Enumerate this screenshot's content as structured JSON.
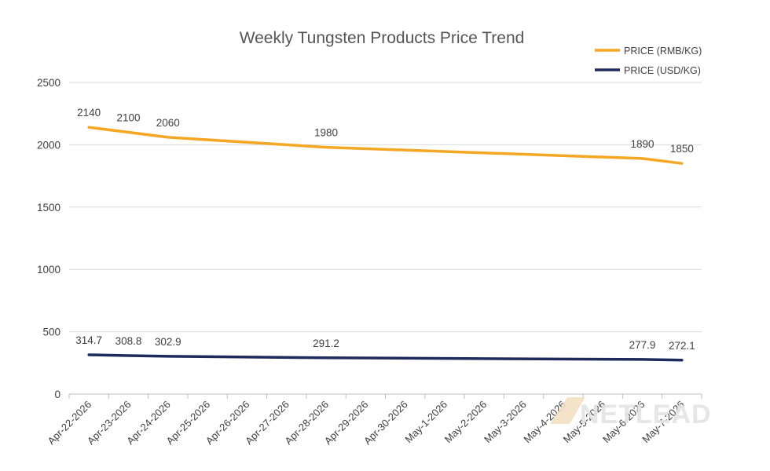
{
  "chart_data": {
    "type": "line",
    "title": "Weekly Tungsten Products Price Trend",
    "categories": [
      "Apr-22-2026",
      "Apr-23-2026",
      "Apr-24-2026",
      "Apr-25-2026",
      "Apr-26-2026",
      "Apr-27-2026",
      "Apr-28-2026",
      "Apr-29-2026",
      "Apr-30-2026",
      "May-1-2026",
      "May-2-2026",
      "May-3-2026",
      "May-4-2026",
      "May-5-2026",
      "May-6-2026",
      "May-7-2026"
    ],
    "ylim": [
      0,
      2500
    ],
    "yticks": [
      0,
      500,
      1000,
      1500,
      2000,
      2500
    ],
    "grid": true,
    "legend_position": "top-right",
    "series": [
      {
        "name": "PRICE (RMB/KG)",
        "color": "#f5a623",
        "values": [
          2140,
          2100,
          2060,
          null,
          null,
          null,
          1980,
          null,
          null,
          null,
          null,
          null,
          null,
          null,
          1890,
          1850
        ],
        "labels": [
          "2140",
          "2100",
          "2060",
          null,
          null,
          null,
          "1980",
          null,
          null,
          null,
          null,
          null,
          null,
          null,
          "1890",
          "1850"
        ]
      },
      {
        "name": "PRICE (USD/KG)",
        "color": "#1f2a5c",
        "values": [
          314.7,
          308.8,
          302.9,
          null,
          null,
          null,
          291.2,
          null,
          null,
          null,
          null,
          null,
          null,
          null,
          277.9,
          272.1
        ],
        "labels": [
          "314.7",
          "308.8",
          "302.9",
          null,
          null,
          null,
          "291.2",
          null,
          null,
          null,
          null,
          null,
          null,
          null,
          "277.9",
          "272.1"
        ]
      }
    ]
  },
  "watermark": {
    "text": "NETLEAD",
    "icon": "wing-logo-icon"
  }
}
